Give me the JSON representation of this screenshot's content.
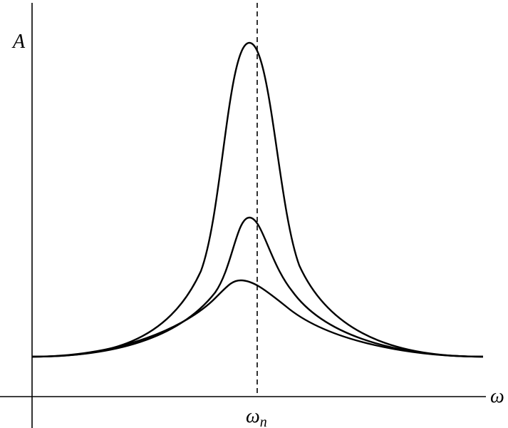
{
  "labels": {
    "y_axis": "A",
    "x_axis": "ω",
    "marker": {
      "main": "ω",
      "sub": "n"
    }
  }
}
